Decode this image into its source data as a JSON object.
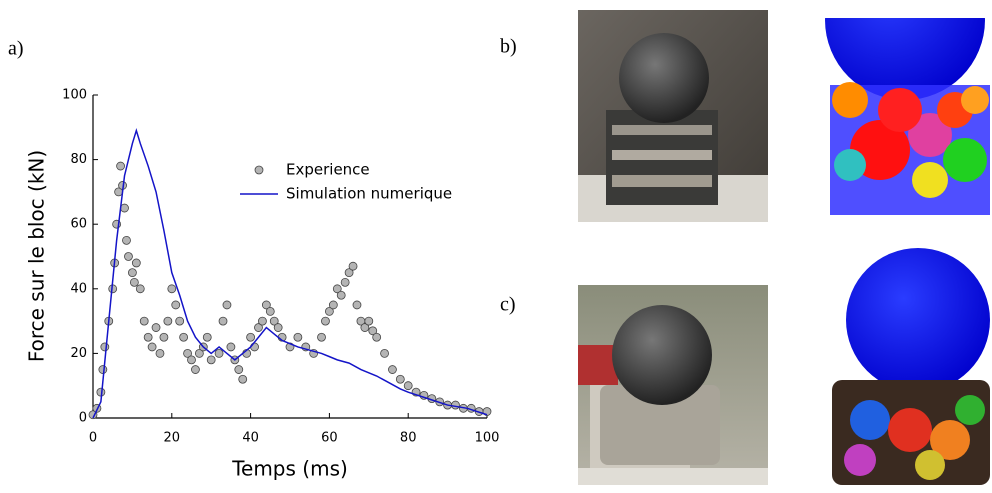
{
  "panel_labels": [
    "a)",
    "b)",
    "c)"
  ],
  "chart_data": {
    "type": "scatter-line",
    "x_label": "Temps (ms)",
    "y_label": "Force sur le bloc (kN)",
    "xlim": [
      0,
      100
    ],
    "xticks": [
      0,
      20,
      40,
      60,
      80,
      100
    ],
    "ylim": [
      0,
      100
    ],
    "yticks": [
      0,
      20,
      40,
      60,
      80,
      100
    ],
    "series": [
      {
        "name": "Experience",
        "kind": "scatter",
        "color": "#b4b4b4",
        "x": [
          0,
          1,
          2,
          2.5,
          3,
          4,
          5,
          5.5,
          6,
          6.5,
          7,
          7.5,
          8,
          8.5,
          9,
          10,
          10.5,
          11,
          12,
          13,
          14,
          15,
          16,
          17,
          18,
          19,
          20,
          21,
          22,
          23,
          24,
          25,
          26,
          27,
          28,
          29,
          30,
          32,
          33,
          34,
          35,
          36,
          37,
          38,
          39,
          40,
          41,
          42,
          43,
          44,
          45,
          46,
          47,
          48,
          50,
          52,
          54,
          56,
          58,
          59,
          60,
          61,
          62,
          63,
          64,
          65,
          66,
          67,
          68,
          69,
          70,
          71,
          72,
          74,
          76,
          78,
          80,
          82,
          84,
          86,
          88,
          90,
          92,
          94,
          96,
          98,
          100
        ],
        "values": [
          1,
          3,
          8,
          15,
          22,
          30,
          40,
          48,
          60,
          70,
          78,
          72,
          65,
          55,
          50,
          45,
          42,
          48,
          40,
          30,
          25,
          22,
          28,
          20,
          25,
          30,
          40,
          35,
          30,
          25,
          20,
          18,
          15,
          20,
          22,
          25,
          18,
          20,
          30,
          35,
          22,
          18,
          15,
          12,
          20,
          25,
          22,
          28,
          30,
          35,
          33,
          30,
          28,
          25,
          22,
          25,
          22,
          20,
          25,
          30,
          33,
          35,
          40,
          38,
          42,
          45,
          47,
          35,
          30,
          28,
          30,
          27,
          25,
          20,
          15,
          12,
          10,
          8,
          7,
          6,
          5,
          4,
          4,
          3,
          3,
          2,
          2
        ]
      },
      {
        "name": "Simulation numerique",
        "kind": "line",
        "color": "#1414c8",
        "x": [
          0,
          2,
          4,
          6,
          8,
          10,
          11,
          12,
          14,
          16,
          18,
          20,
          22,
          24,
          26,
          28,
          30,
          32,
          34,
          36,
          38,
          40,
          42,
          44,
          46,
          48,
          50,
          52,
          55,
          58,
          60,
          62,
          65,
          68,
          70,
          72,
          75,
          78,
          80,
          85,
          90,
          95,
          100
        ],
        "values": [
          0,
          5,
          30,
          55,
          75,
          85,
          89,
          85,
          78,
          70,
          58,
          45,
          38,
          30,
          25,
          22,
          20,
          22,
          20,
          18,
          20,
          22,
          25,
          28,
          26,
          24,
          23,
          22,
          21,
          20,
          19,
          18,
          17,
          15,
          14,
          13,
          11,
          9,
          8,
          6,
          4,
          3,
          1
        ]
      }
    ]
  }
}
